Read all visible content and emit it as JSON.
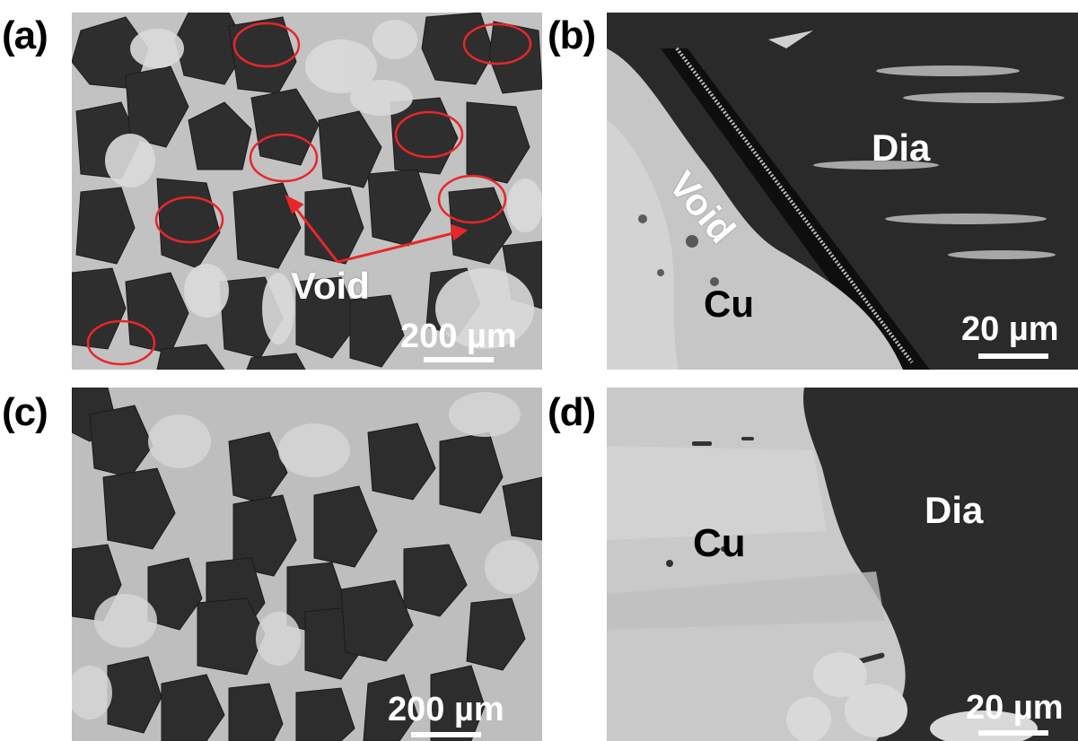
{
  "panels": {
    "a": {
      "letter": "(a)",
      "annotation": "Void",
      "scale": "200 µm"
    },
    "b": {
      "letter": "(b)",
      "void_label": "Void",
      "dia_label": "Dia",
      "cu_label": "Cu",
      "scale": "20 µm"
    },
    "c": {
      "letter": "(c)",
      "scale": "200 µm"
    },
    "d": {
      "letter": "(d)",
      "cu_label": "Cu",
      "dia_label": "Dia",
      "scale": "20 µm"
    }
  },
  "colors": {
    "diamond": "#2b2b2b",
    "copper": "#c9c9c9",
    "void": "#0d0d0d",
    "highlight_circle": "#e8262a",
    "arrow": "#e8262a",
    "label_white": "#ffffff",
    "label_black": "#000000"
  }
}
